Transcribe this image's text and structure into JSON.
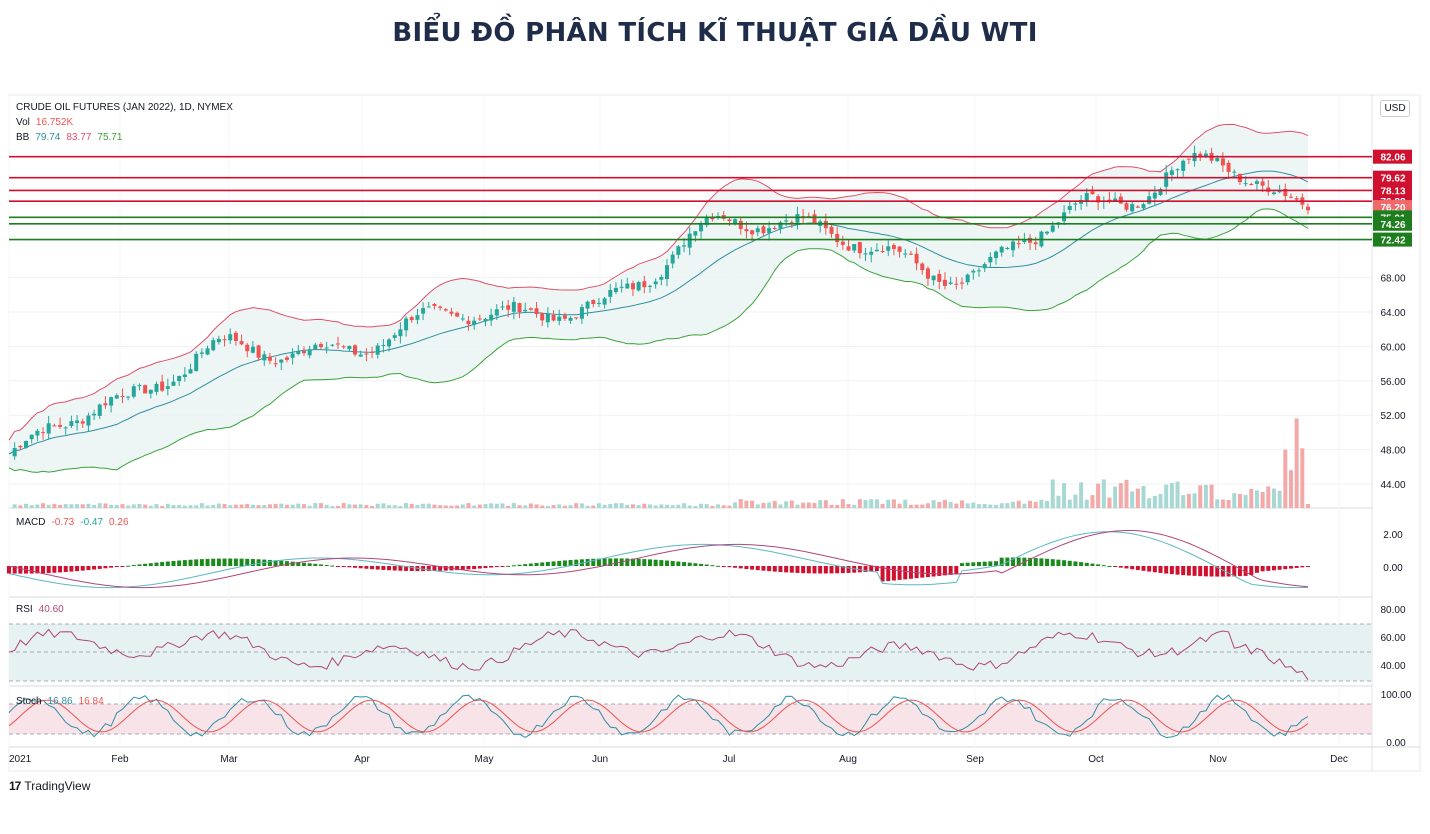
{
  "title": "BIỂU ĐỒ PHÂN TÍCH KĨ THUẬT GIÁ DẦU WTI",
  "logo": {
    "mark": "17",
    "text": "TradingView",
    "icon": "tradingview-logo-icon"
  },
  "currency_button": "USD",
  "colors": {
    "up": "#26a69a",
    "down": "#ef5350",
    "resistance": "#d0102f",
    "support": "#1e7e1e",
    "bb_upper": "#e0506a",
    "bb_mid": "#2f8fa3",
    "bb_lower": "#3aa23a"
  },
  "legend": {
    "symbol": "CRUDE OIL FUTURES (JAN 2022), 1D, NYMEX",
    "vol_label": "Vol",
    "vol_value": "16.752K",
    "bb_label": "BB",
    "bb_values": [
      "79.74",
      "83.77",
      "75.71"
    ],
    "macd_label": "MACD",
    "macd_values": [
      "-0.73",
      "-0.47",
      "0.26"
    ],
    "rsi_label": "RSI",
    "rsi_value": "40.60",
    "stoch_label": "Stoch",
    "stoch_values": [
      "16.86",
      "16.84"
    ]
  },
  "chart_data": {
    "type": "candlestick",
    "x_ticks": [
      "2021",
      "Feb",
      "Mar",
      "Apr",
      "May",
      "Jun",
      "Jul",
      "Aug",
      "Sep",
      "Oct",
      "Nov",
      "Dec"
    ],
    "price_axis": {
      "ticks": [
        "44.00",
        "48.00",
        "52.00",
        "56.00",
        "60.00",
        "64.00",
        "68.00"
      ],
      "ylim": [
        42,
        86
      ]
    },
    "series_close_monthly": [
      {
        "month": "Jan",
        "close": 52.2
      },
      {
        "month": "Feb",
        "close": 61.5
      },
      {
        "month": "Mar",
        "close": 59.2
      },
      {
        "month": "Apr",
        "close": 63.6
      },
      {
        "month": "May",
        "close": 66.3
      },
      {
        "month": "Jun",
        "close": 73.1
      },
      {
        "month": "Jul",
        "close": 73.6
      },
      {
        "month": "Aug",
        "close": 68.5
      },
      {
        "month": "Sep",
        "close": 75.0
      },
      {
        "month": "Oct",
        "close": 83.3
      },
      {
        "month": "Nov",
        "close": 76.2
      }
    ],
    "key_levels": [
      {
        "value": "82.06",
        "type": "resistance"
      },
      {
        "value": "79.62",
        "type": "resistance"
      },
      {
        "value": "78.13",
        "type": "resistance"
      },
      {
        "value": "76.88",
        "type": "resistance"
      },
      {
        "value": "76.20",
        "type": "current"
      },
      {
        "value": "75.01",
        "type": "support"
      },
      {
        "value": "74.26",
        "type": "support"
      },
      {
        "value": "72.42",
        "type": "support"
      }
    ],
    "macd_axis": {
      "ticks": [
        "2.00",
        "0.00"
      ]
    },
    "rsi_axis": {
      "ticks": [
        "80.00",
        "60.00",
        "40.00"
      ]
    },
    "stoch_axis": {
      "ticks": [
        "100.00",
        "0.00"
      ]
    }
  }
}
